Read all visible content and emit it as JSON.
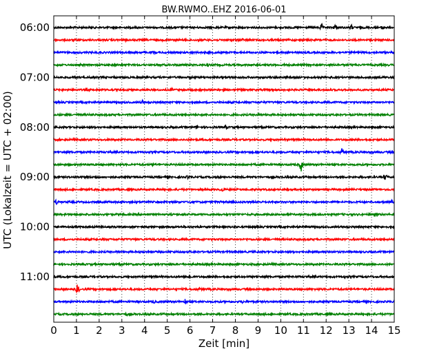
{
  "chart_data": {
    "type": "line",
    "title": "BW.RWMO..EHZ 2016-06-01",
    "xlabel": "Zeit  [min]",
    "ylabel": "UTC (Lokalzeit = UTC + 02:00)",
    "xlim": [
      0,
      15
    ],
    "x_ticks": [
      "0",
      "1",
      "2",
      "3",
      "4",
      "5",
      "6",
      "7",
      "8",
      "9",
      "10",
      "11",
      "12",
      "13",
      "14",
      "15"
    ],
    "y_ticks": [
      "06:00",
      "07:00",
      "08:00",
      "09:00",
      "10:00",
      "11:00"
    ],
    "grid": "vertical dotted",
    "trace_interval_minutes": 15,
    "trace_colors": [
      "#000000",
      "#ff0000",
      "#0000ff",
      "#008000"
    ],
    "traces": [
      {
        "start": "06:00",
        "color": "#000000",
        "events": [
          {
            "x": 11.8,
            "amp": 6
          },
          {
            "x": 12.4,
            "amp": 5
          },
          {
            "x": 13.1,
            "amp": 5
          },
          {
            "x": 14.5,
            "amp": 5
          }
        ]
      },
      {
        "start": "06:15",
        "color": "#ff0000",
        "events": [
          {
            "x": 3.2,
            "amp": 3
          },
          {
            "x": 8.3,
            "amp": 3
          }
        ]
      },
      {
        "start": "06:30",
        "color": "#0000ff",
        "events": [
          {
            "x": 2.0,
            "amp": 3
          },
          {
            "x": 4.4,
            "amp": 3
          }
        ]
      },
      {
        "start": "06:45",
        "color": "#008000",
        "events": [
          {
            "x": 6.8,
            "amp": 3
          },
          {
            "x": 10.2,
            "amp": 3
          }
        ]
      },
      {
        "start": "07:00",
        "color": "#000000",
        "events": [
          {
            "x": 2.7,
            "amp": 3
          },
          {
            "x": 7.8,
            "amp": 3
          }
        ]
      },
      {
        "start": "07:15",
        "color": "#ff0000",
        "events": [
          {
            "x": 5.2,
            "amp": 3
          }
        ]
      },
      {
        "start": "07:30",
        "color": "#0000ff",
        "events": [
          {
            "x": 3.9,
            "amp": 3
          }
        ]
      },
      {
        "start": "07:45",
        "color": "#008000",
        "events": [
          {
            "x": 9.0,
            "amp": 3
          }
        ]
      },
      {
        "start": "08:00",
        "color": "#000000",
        "events": [
          {
            "x": 5.2,
            "amp": 3
          },
          {
            "x": 6.3,
            "amp": 3
          },
          {
            "x": 7.6,
            "amp": 3
          }
        ]
      },
      {
        "start": "08:15",
        "color": "#ff0000",
        "events": [
          {
            "x": 9.6,
            "amp": 2
          }
        ]
      },
      {
        "start": "08:30",
        "color": "#0000ff",
        "events": [
          {
            "x": 12.7,
            "amp": 6
          }
        ]
      },
      {
        "start": "08:45",
        "color": "#008000",
        "events": [
          {
            "x": 1.1,
            "amp": 3
          },
          {
            "x": 4.4,
            "amp": 4
          },
          {
            "x": 10.9,
            "amp": 10
          }
        ]
      },
      {
        "start": "09:00",
        "color": "#000000",
        "events": [
          {
            "x": 1.9,
            "amp": 3
          },
          {
            "x": 5.9,
            "amp": 3
          },
          {
            "x": 14.6,
            "amp": 6
          }
        ]
      },
      {
        "start": "09:15",
        "color": "#ff0000",
        "events": [
          {
            "x": 7.4,
            "amp": 5
          }
        ]
      },
      {
        "start": "09:30",
        "color": "#0000ff",
        "events": [
          {
            "x": 0.1,
            "amp": 4
          },
          {
            "x": 6.0,
            "amp": 3
          },
          {
            "x": 14.9,
            "amp": 4
          }
        ]
      },
      {
        "start": "09:45",
        "color": "#008000",
        "events": [
          {
            "x": 10.1,
            "amp": 2
          }
        ]
      },
      {
        "start": "10:00",
        "color": "#000000",
        "events": []
      },
      {
        "start": "10:15",
        "color": "#ff0000",
        "events": []
      },
      {
        "start": "10:30",
        "color": "#0000ff",
        "events": []
      },
      {
        "start": "10:45",
        "color": "#008000",
        "events": [
          {
            "x": 3.0,
            "amp": 2
          }
        ]
      },
      {
        "start": "11:00",
        "color": "#000000",
        "events": [
          {
            "x": 6.0,
            "amp": 5
          },
          {
            "x": 12.8,
            "amp": 3
          }
        ]
      },
      {
        "start": "11:15",
        "color": "#ff0000",
        "events": [
          {
            "x": 1.05,
            "amp": 8
          },
          {
            "x": 6.4,
            "amp": 3
          },
          {
            "x": 10.0,
            "amp": 3
          }
        ]
      },
      {
        "start": "11:30",
        "color": "#0000ff",
        "events": [
          {
            "x": 4.4,
            "amp": 4
          },
          {
            "x": 5.8,
            "amp": 5
          },
          {
            "x": 8.3,
            "amp": 3
          }
        ]
      },
      {
        "start": "11:45",
        "color": "#008000",
        "events": [
          {
            "x": 3.2,
            "amp": 3
          },
          {
            "x": 12.2,
            "amp": 3
          }
        ]
      }
    ]
  }
}
